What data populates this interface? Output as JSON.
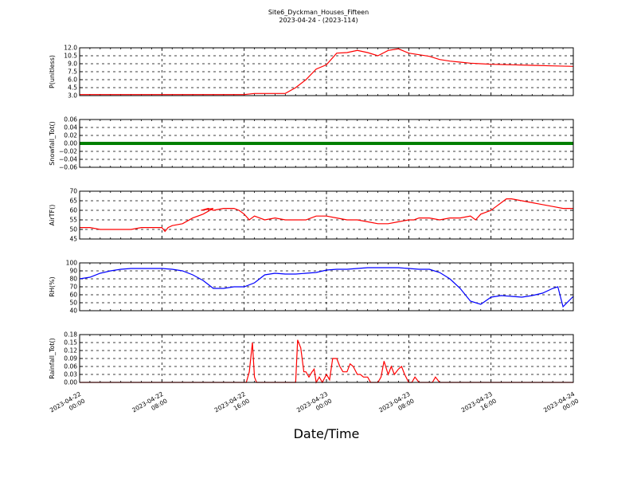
{
  "title": "Site6_Dyckman_Houses_Fifteen",
  "subtitle": "2023-04-24 - (2023-114)",
  "xlabel": "Date/Time",
  "x_ticks": [
    {
      "l1": "2023-04-22",
      "l2": "00:00"
    },
    {
      "l1": "2023-04-22",
      "l2": "08:00"
    },
    {
      "l1": "2023-04-22",
      "l2": "16:00"
    },
    {
      "l1": "2023-04-23",
      "l2": "00:00"
    },
    {
      "l1": "2023-04-23",
      "l2": "08:00"
    },
    {
      "l1": "2023-04-23",
      "l2": "16:00"
    },
    {
      "l1": "2023-04-24",
      "l2": "00:00"
    }
  ],
  "chart_data": [
    {
      "type": "line",
      "ylabel": "P(unitless)",
      "ylim": [
        3.0,
        12.0
      ],
      "yticks": [
        "3.0",
        "4.5",
        "6.0",
        "7.5",
        "9.0",
        "10.5",
        "12.0"
      ],
      "xlim_hours": [
        0,
        48
      ],
      "color": "#ff0000",
      "x": [
        0,
        16,
        17,
        20,
        21,
        22,
        23,
        24,
        25,
        26,
        27,
        28,
        29,
        30,
        31,
        32,
        33,
        34,
        35,
        36,
        37,
        38,
        39,
        40,
        42,
        44,
        46,
        48
      ],
      "values": [
        3.2,
        3.2,
        3.4,
        3.4,
        4.5,
        6.0,
        8.0,
        8.8,
        11.0,
        11.1,
        11.5,
        11.1,
        10.5,
        11.5,
        11.8,
        11.0,
        10.7,
        10.4,
        9.8,
        9.5,
        9.3,
        9.1,
        9.0,
        8.9,
        8.8,
        8.7,
        8.6,
        8.5
      ]
    },
    {
      "type": "line",
      "ylabel": "Snowfall_Tot()",
      "ylim": [
        -0.06,
        0.06
      ],
      "yticks": [
        "−0.06",
        "−0.04",
        "−0.02",
        "0.00",
        "0.02",
        "0.04",
        "0.06"
      ],
      "xlim_hours": [
        0,
        48
      ],
      "color": "#008000",
      "x": [
        0,
        48
      ],
      "values": [
        0,
        0
      ]
    },
    {
      "type": "line",
      "ylabel": "AirTF()",
      "ylim": [
        45,
        70
      ],
      "yticks": [
        "45",
        "50",
        "55",
        "60",
        "65",
        "70"
      ],
      "xlim_hours": [
        0,
        48
      ],
      "color": "#ff0000",
      "x": [
        0,
        1,
        2,
        3,
        4,
        5,
        6,
        7,
        8,
        8.3,
        8.6,
        9,
        10,
        11,
        12,
        13,
        11.8,
        12.5,
        13,
        14,
        15,
        15.5,
        16,
        16.5,
        17,
        17.5,
        18,
        19,
        20,
        21,
        22,
        23,
        24,
        25,
        26,
        27,
        28,
        29,
        30,
        31,
        32,
        32.5,
        33,
        33.5,
        34,
        35,
        36,
        37,
        38,
        38.5,
        39,
        40,
        40.5,
        41,
        41.5,
        42,
        43,
        44,
        45,
        46,
        47,
        48
      ],
      "values": [
        51,
        51,
        50,
        50,
        50,
        50,
        51,
        51,
        51,
        49,
        51,
        52,
        53,
        56,
        58,
        61,
        60,
        61,
        60,
        61,
        61,
        60,
        58,
        55,
        57,
        56,
        55,
        56,
        55,
        55,
        55,
        57,
        57,
        56,
        55,
        55,
        54,
        53,
        53,
        54,
        55,
        55,
        56,
        56,
        56,
        55,
        56,
        56,
        57,
        55,
        58,
        60,
        62,
        64,
        66,
        66,
        65,
        64,
        63,
        62,
        61,
        61
      ],
      "note_ignore": ""
    },
    {
      "type": "line",
      "ylabel": "RH(%)",
      "ylim": [
        40,
        100
      ],
      "yticks": [
        "40",
        "50",
        "60",
        "70",
        "80",
        "90",
        "100"
      ],
      "xlim_hours": [
        0,
        48
      ],
      "color": "#0000ff",
      "x": [
        0,
        1,
        2,
        3,
        4,
        5,
        6,
        7,
        8,
        9,
        10,
        11,
        12,
        13,
        14,
        15,
        16,
        17,
        18,
        19,
        20,
        21,
        22,
        23,
        24,
        25,
        26,
        27,
        28,
        29,
        30,
        31,
        32,
        33,
        34,
        35,
        36,
        37,
        38,
        39,
        40,
        41,
        42,
        43,
        44,
        45,
        46,
        46.5,
        47,
        48
      ],
      "values": [
        80,
        82,
        87,
        90,
        92,
        93,
        93,
        93,
        93,
        92,
        90,
        85,
        78,
        68,
        68,
        70,
        70,
        75,
        85,
        87,
        86,
        86,
        87,
        88,
        91,
        92,
        92,
        93,
        94,
        94,
        94,
        94,
        93,
        92,
        92,
        88,
        80,
        68,
        52,
        48,
        57,
        59,
        58,
        57,
        59,
        62,
        68,
        70,
        45,
        58
      ],
      "note_ignore": ""
    },
    {
      "type": "line",
      "ylabel": "Rainfall_Tot()",
      "ylim": [
        0.0,
        0.18
      ],
      "yticks": [
        "0.00",
        "0.03",
        "0.06",
        "0.09",
        "0.12",
        "0.15",
        "0.18"
      ],
      "xlim_hours": [
        0,
        48
      ],
      "color": "#ff0000",
      "x": [
        0,
        16.2,
        16.5,
        16.8,
        17.0,
        17.2,
        18.0,
        21.0,
        21.2,
        21.5,
        21.8,
        22.0,
        22.3,
        22.6,
        22.8,
        23.0,
        23.3,
        23.6,
        24.0,
        24.3,
        24.6,
        25.0,
        25.3,
        25.6,
        26.0,
        26.3,
        26.6,
        27.0,
        27.3,
        27.6,
        28.0,
        28.3,
        28.6,
        29.0,
        29.3,
        29.6,
        30.0,
        30.3,
        30.6,
        31.0,
        31.3,
        31.6,
        32.0,
        32.3,
        32.6,
        33.0,
        33.3,
        33.6,
        34.0,
        34.3,
        34.6,
        35.0,
        35.3,
        35.6,
        36.0,
        48
      ],
      "values": [
        0,
        0,
        0.04,
        0.15,
        0.02,
        0,
        0,
        0,
        0.16,
        0.13,
        0.04,
        0.04,
        0.02,
        0.04,
        0.05,
        0,
        0.02,
        0,
        0.03,
        0.01,
        0.09,
        0.09,
        0.06,
        0.04,
        0.04,
        0.07,
        0.06,
        0.03,
        0.03,
        0.02,
        0.02,
        0,
        0,
        0,
        0.02,
        0.08,
        0.03,
        0.06,
        0.03,
        0.05,
        0.06,
        0.03,
        0,
        0,
        0.02,
        0,
        0,
        0,
        0,
        0,
        0.02,
        0,
        0,
        0,
        0,
        0
      ],
      "note_ignore": ""
    }
  ]
}
